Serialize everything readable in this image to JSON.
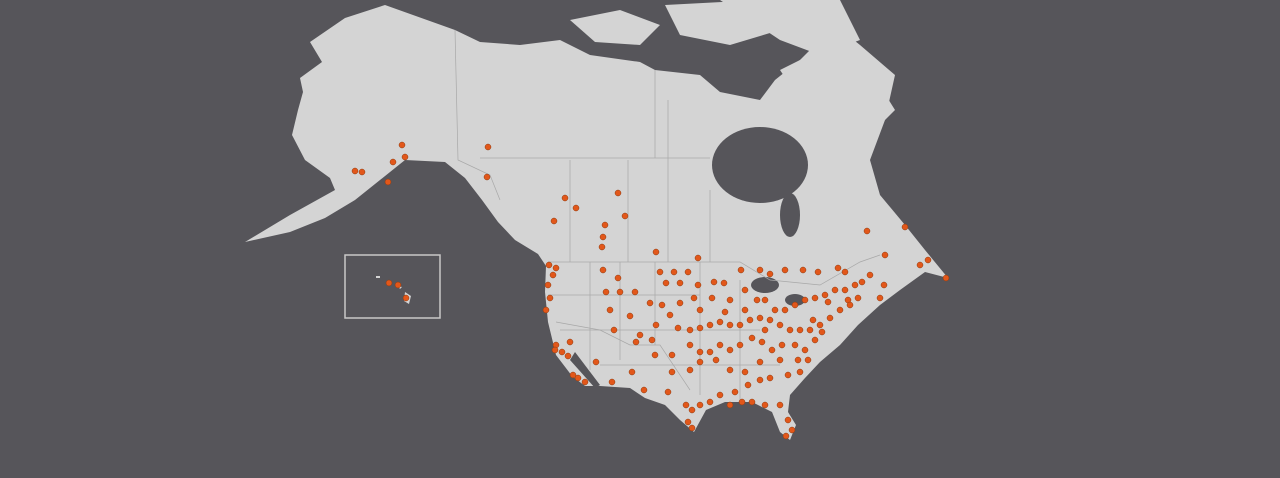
{
  "map": {
    "background_color": "#56555a",
    "land_color": "#d4d4d4",
    "border_color": "#a8a8a8",
    "marker_color": "#e2571a",
    "marker_stroke": "#8a3a10",
    "inset": "hawaii"
  }
}
